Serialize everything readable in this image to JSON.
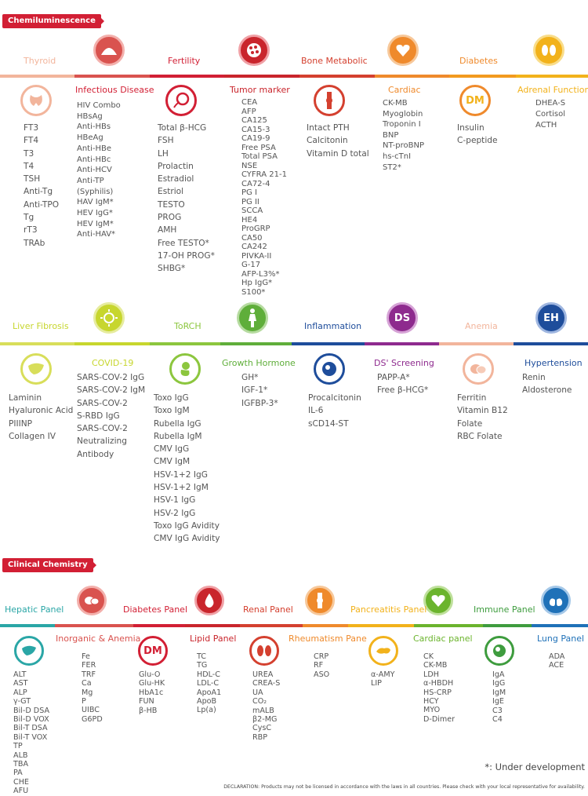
{
  "sections": {
    "chemiluminescence": "Chemiluminescence",
    "clinical": "Clinical Chemistry"
  },
  "colors": {
    "red": "#d21f34",
    "salmon": "#f2b59c",
    "orange": "#ef8a2c",
    "yellow": "#f2b21b",
    "lime": "#c7d62e",
    "green": "#6bb42d",
    "blue": "#1e4d9b",
    "purple": "#8e2a8e",
    "teal": "#2aa6a6",
    "skyblue": "#1f71b8"
  },
  "chem": {
    "thyroid": {
      "title": "Thyroid",
      "items": [
        "FT3",
        "FT4",
        "T3",
        "T4",
        "TSH",
        "Anti-Tg",
        "Anti-TPO",
        "Tg",
        "rT3",
        "TRAb"
      ]
    },
    "infectious": {
      "title": "Infectious Disease",
      "items": [
        "HIV Combo",
        "HBsAg",
        "Anti-HBs",
        "HBeAg",
        "Anti-HBe",
        "Anti-HBc",
        "Anti-HCV",
        "Anti-TP",
        "(Syphilis)",
        "HAV IgM*",
        "HEV IgG*",
        "HEV IgM*",
        "Anti-HAV*"
      ]
    },
    "fertility": {
      "title": "Fertility",
      "items": [
        "Total  β-HCG",
        "FSH",
        "LH",
        "Prolactin",
        "Estradiol",
        "Estriol",
        "TESTO",
        "PROG",
        "AMH",
        "Free TESTO*",
        "17-OH PROG*",
        "SHBG*"
      ]
    },
    "tumor": {
      "title": "Tumor marker",
      "items": [
        "CEA",
        "AFP",
        "CA125",
        "CA15-3",
        "CA19-9",
        "Free PSA",
        "Total PSA",
        "NSE",
        "CYFRA 21-1",
        "CA72-4",
        "PG I",
        "PG II",
        "SCCA",
        "HE4",
        "ProGRP",
        "CA50",
        "CA242",
        "PIVKA-II",
        "G-17",
        "AFP-L3%*",
        "Hp IgG*",
        "S100*"
      ]
    },
    "bone": {
      "title": "Bone Metabolic",
      "items": [
        "Intact PTH",
        "Calcitonin",
        "Vitamin D total"
      ]
    },
    "cardiac": {
      "title": "Cardiac",
      "items": [
        "CK-MB",
        "Myoglobin",
        "Troponin I",
        "BNP",
        "NT-proBNP",
        "hs-cTnI",
        "ST2*"
      ]
    },
    "diabetes": {
      "title": "Diabetes",
      "icon_text": "DM",
      "items": [
        "Insulin",
        "C-peptide"
      ]
    },
    "adrenal": {
      "title": "Adrenal Function",
      "items": [
        "DHEA-S",
        "Cortisol",
        "ACTH"
      ]
    },
    "liver": {
      "title": "Liver Fibrosis",
      "items": [
        "Laminin",
        "Hyaluronic Acid",
        "PIIINP",
        "Collagen IV"
      ]
    },
    "covid": {
      "title": "COVID-19",
      "items": [
        "SARS-COV-2 IgG",
        "SARS-COV-2 IgM",
        "SARS-COV-2",
        "S-RBD IgG",
        "SARS-COV-2",
        "Neutralizing",
        "Antibody"
      ]
    },
    "torch": {
      "title": "ToRCH",
      "items": [
        "Toxo IgG",
        "Toxo IgM",
        "Rubella IgG",
        "Rubella IgM",
        "CMV IgG",
        "CMV IgM",
        "HSV-1+2 IgG",
        "HSV-1+2 IgM",
        "HSV-1 IgG",
        "HSV-2 IgG",
        "Toxo IgG Avidity",
        "CMV IgG Avidity"
      ]
    },
    "growth": {
      "title": "Growth Hormone",
      "items": [
        "GH*",
        "IGF-1*",
        "IGFBP-3*"
      ]
    },
    "inflammation": {
      "title": "Inflammation",
      "items": [
        "Procalcitonin",
        "IL-6",
        "sCD14-ST"
      ]
    },
    "ds": {
      "title": "DS' Screening",
      "icon_text": "DS",
      "items": [
        "PAPP-A*",
        "Free β-HCG*"
      ]
    },
    "anemia": {
      "title": "Anemia",
      "items": [
        "Ferritin",
        "Vitamin B12",
        "Folate",
        "RBC Folate"
      ]
    },
    "hypertension": {
      "title": "Hypertension",
      "icon_text": "EH",
      "items": [
        "Renin",
        "Aldosterone"
      ]
    }
  },
  "clin": {
    "hepatic": {
      "title": "Hepatic Panel",
      "items": [
        "ALT",
        "AST",
        "ALP",
        "γ-GT",
        "Bil-D DSA",
        "Bil-D VOX",
        "Bil-T DSA",
        "Bil-T VOX",
        "TP",
        "ALB",
        "TBA",
        "PA",
        "CHE",
        "AFU"
      ]
    },
    "inorganic": {
      "title": "Inorganic & Anemia",
      "items": [
        "Fe",
        "FER",
        "TRF",
        "Ca",
        "Mg",
        "P",
        "UIBC",
        "G6PD"
      ]
    },
    "diabetes": {
      "title": "Diabetes Panel",
      "icon_text": "DM",
      "items": [
        "Glu-O",
        "Glu-HK",
        "HbA1c",
        "FUN",
        "β-HB"
      ]
    },
    "lipid": {
      "title": "Lipid Panel",
      "items": [
        "TC",
        "TG",
        "HDL-C",
        "LDL-C",
        "ApoA1",
        "ApoB",
        "Lp(a)"
      ]
    },
    "renal": {
      "title": "Renal Panel",
      "items": [
        "UREA",
        "CREA-S",
        "UA",
        "CO₂",
        "mALB",
        "β2-MG",
        "CysC",
        "RBP"
      ]
    },
    "rheum": {
      "title": "Rheumatism Pane",
      "items": [
        "CRP",
        "RF",
        "ASO"
      ]
    },
    "pancreatitis": {
      "title": "Pancreatitis Panel",
      "items": [
        "α-AMY",
        "LIP"
      ]
    },
    "cardiac": {
      "title": "Cardiac panel",
      "items": [
        "CK",
        "CK-MB",
        "LDH",
        "α-HBDH",
        "HS-CRP",
        "HCY",
        "MYO",
        "D-Dimer"
      ]
    },
    "immune": {
      "title": "Immune Panel",
      "items": [
        "IgA",
        "IgG",
        "IgM",
        "IgE",
        "C3",
        "C4"
      ]
    },
    "lung": {
      "title": "Lung Panel",
      "items": [
        "ADA",
        "ACE"
      ]
    }
  },
  "footer": {
    "note": "*: Under development",
    "declaration": "DECLARATION: Products may not be licensed in accordance with the laws in all countries. Please check with your local representative for availability."
  }
}
